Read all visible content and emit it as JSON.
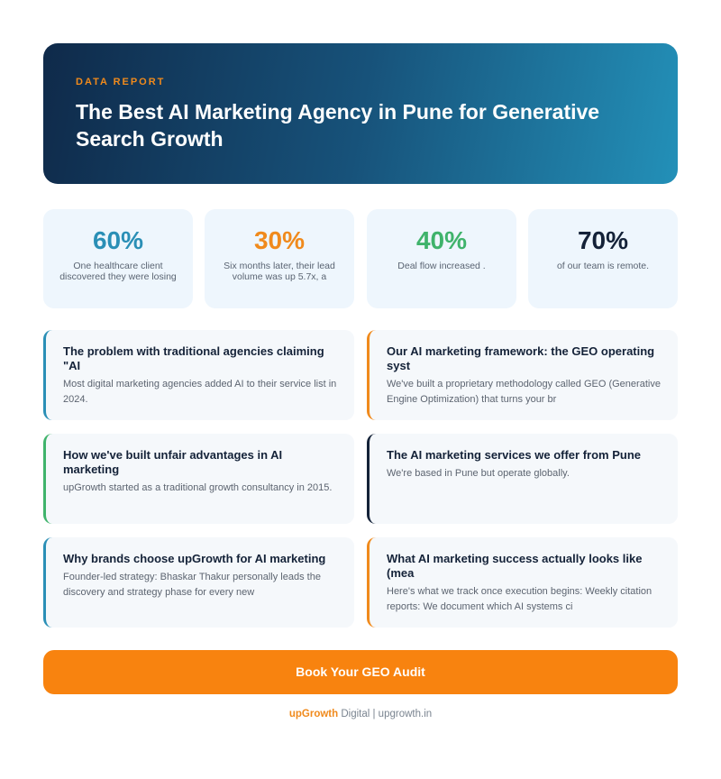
{
  "hero": {
    "eyebrow": "DATA REPORT",
    "title": "The Best AI Marketing Agency in Pune for Generative Search Growth"
  },
  "stats": [
    {
      "value": "60%",
      "label": "One healthcare client discovered they were losing",
      "color": "#2a8fb6"
    },
    {
      "value": "30%",
      "label": "Six months later, their lead volume was up 5.7x, a",
      "color": "#f08a1c"
    },
    {
      "value": "40%",
      "label": "Deal flow increased .",
      "color": "#3fb36b"
    },
    {
      "value": "70%",
      "label": "of our team is remote.",
      "color": "#142238"
    }
  ],
  "cards": [
    {
      "title": "The problem with traditional agencies claiming \"AI",
      "body": "Most digital marketing agencies added AI to their service list in 2024.",
      "accent": "#2a8fb6"
    },
    {
      "title": "Our AI marketing framework: the GEO operating syst",
      "body": "We've built a proprietary methodology called GEO (Generative Engine Optimization) that turns your br",
      "accent": "#f08a1c"
    },
    {
      "title": "How we've built unfair advantages in AI marketing",
      "body": "upGrowth started as a traditional growth consultancy in 2015.",
      "accent": "#3fb36b"
    },
    {
      "title": "The AI marketing services we offer from Pune",
      "body": "We're based in Pune but operate globally.",
      "accent": "#142238"
    },
    {
      "title": "Why brands choose upGrowth for AI marketing",
      "body": "Founder-led strategy: Bhaskar Thakur personally leads the discovery and strategy phase for every new",
      "accent": "#2a8fb6"
    },
    {
      "title": "What AI marketing success actually looks like (mea",
      "body": "Here's what we track once execution begins: Weekly citation reports: We document which AI systems ci",
      "accent": "#f08a1c"
    }
  ],
  "cta": {
    "label": "Book Your GEO Audit"
  },
  "footer": {
    "brand": "upGrowth",
    "text": " Digital | upgrowth.in"
  }
}
